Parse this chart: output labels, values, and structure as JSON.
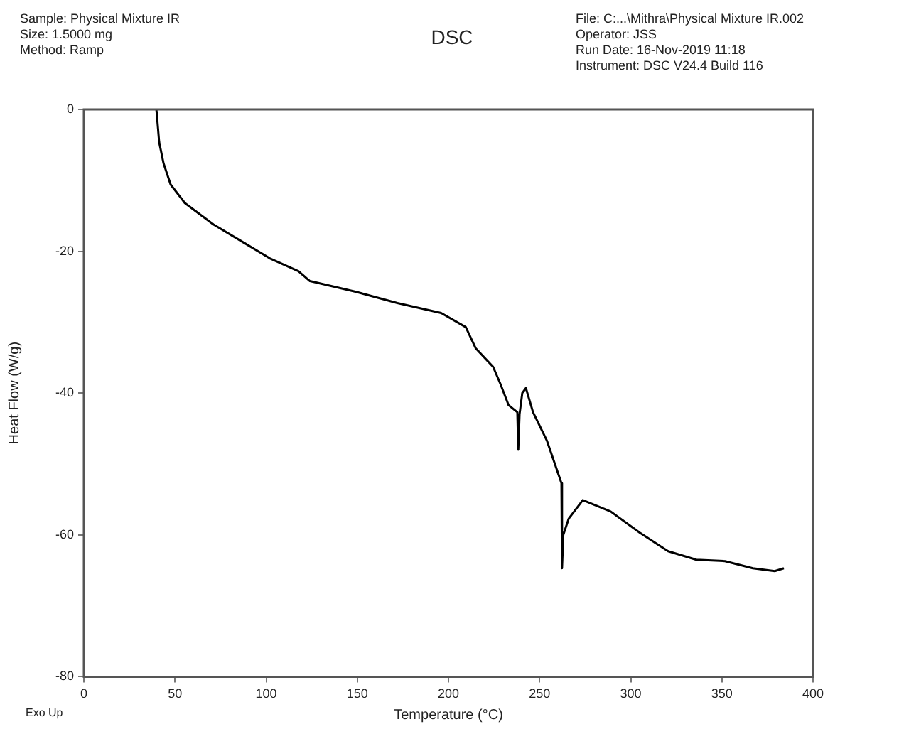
{
  "chart_data": {
    "type": "line",
    "title": "DSC",
    "xlabel": "Temperature (°C)",
    "ylabel": "Heat Flow (W/g)",
    "annotations": [
      "Sample: Physical Mixture IR",
      "Size:  1.5000 mg",
      "Method: Ramp",
      "File: C:...\\Mithra\\Physical Mixture IR.002",
      "Operator: JSS",
      "Run Date: 16-Nov-2019 11:18",
      "Instrument: DSC V24.4 Build 116",
      "Exo Up"
    ],
    "series": [
      {
        "color": "#000000",
        "x": [
          39.8,
          41.3,
          43.7,
          47.6,
          55.4,
          71,
          86.5,
          102,
          117.7,
          124,
          149,
          172,
          196,
          209.5,
          215,
          224.5,
          228.5,
          233,
          237.8,
          238.3,
          239,
          240.5,
          242.5,
          246.4,
          254,
          262,
          262.3,
          263,
          266,
          273.7,
          289,
          305,
          320.5,
          336,
          351.7,
          367,
          379,
          384
        ],
        "values": [
          0,
          -4.6,
          -7.6,
          -10.6,
          -13.2,
          -16.2,
          -18.6,
          -21,
          -22.8,
          -24.2,
          -25.7,
          -27.3,
          -28.7,
          -30.7,
          -33.7,
          -36.3,
          -38.7,
          -41.7,
          -42.7,
          -48,
          -43,
          -40,
          -39.3,
          -42.7,
          -46.7,
          -52.7,
          -64.7,
          -60,
          -57.7,
          -55.1,
          -56.7,
          -59.7,
          -62.3,
          -63.5,
          -63.7,
          -64.7,
          -65.1,
          -64.7
        ]
      }
    ],
    "xlim": [
      0,
      400
    ],
    "xticks": [
      0,
      50,
      100,
      150,
      200,
      250,
      300,
      350,
      400
    ],
    "ylim": [
      -80,
      0
    ],
    "yticks": [
      -80,
      -60,
      -40,
      -20,
      0
    ],
    "grid": false,
    "legend": false,
    "marker": "none",
    "line_style": "solid"
  }
}
